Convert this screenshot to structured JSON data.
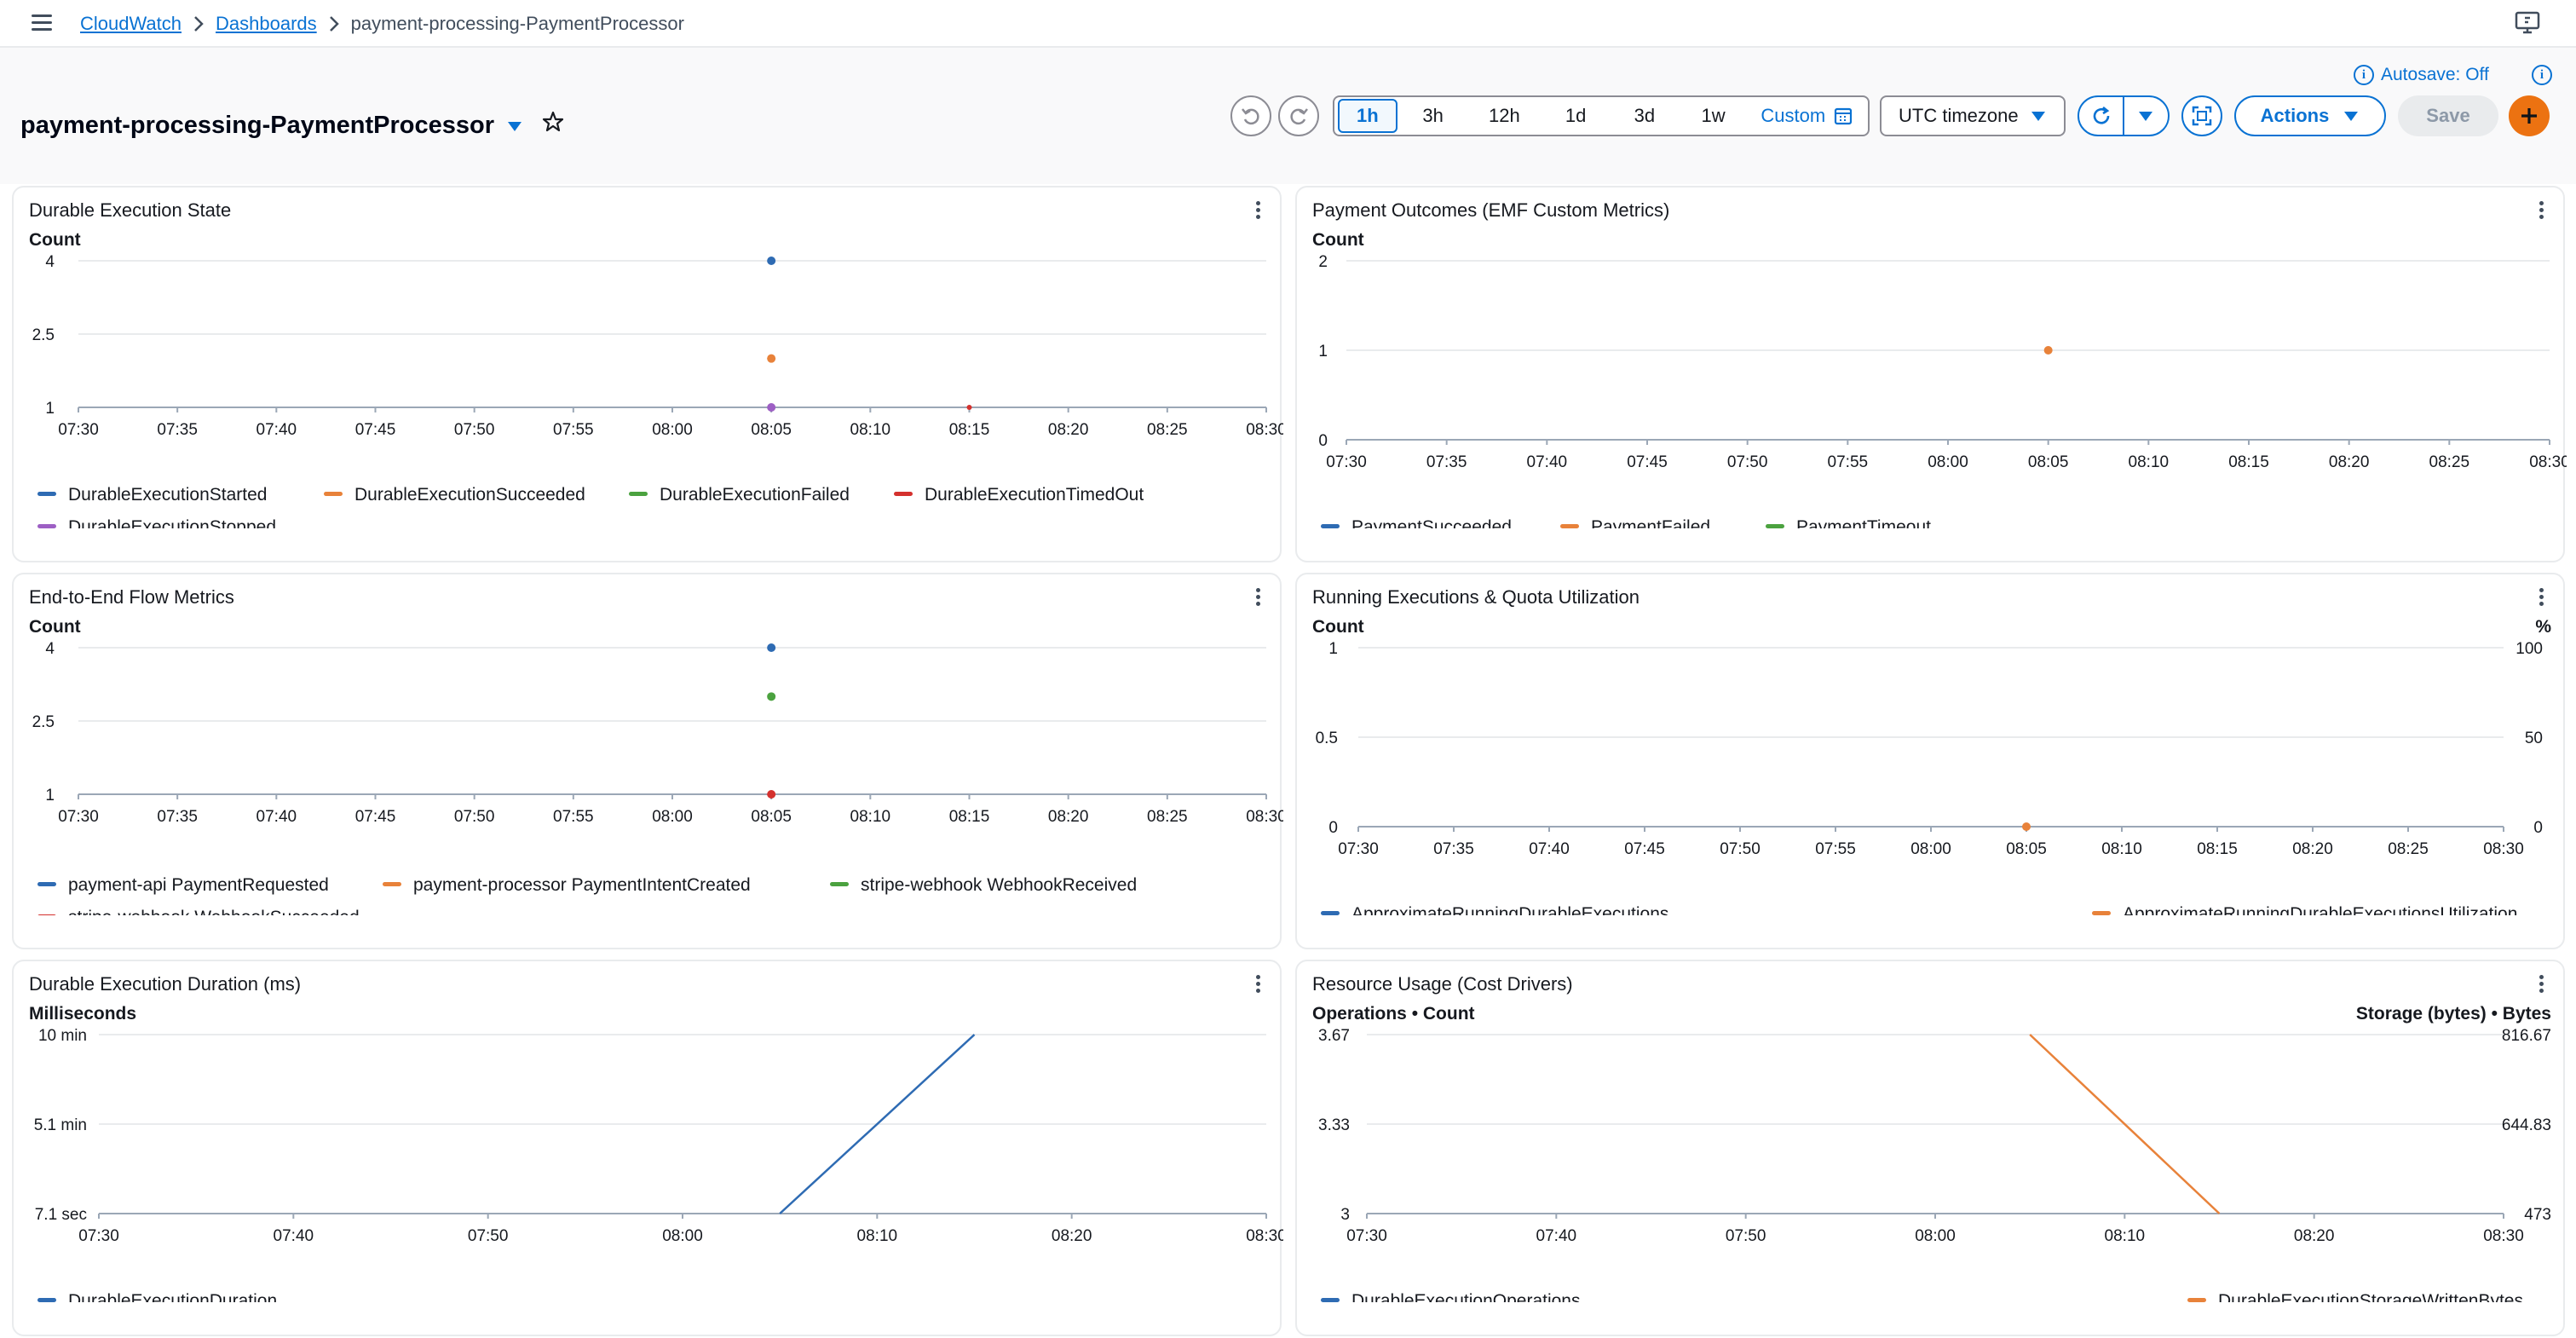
{
  "breadcrumb": {
    "items": [
      "CloudWatch",
      "Dashboards"
    ],
    "current": "payment-processing-PaymentProcessor"
  },
  "header": {
    "title": "payment-processing-PaymentProcessor",
    "autosave": "Autosave: Off",
    "time_ranges": [
      "1h",
      "3h",
      "12h",
      "1d",
      "3d",
      "1w"
    ],
    "active_range": "1h",
    "custom_label": "Custom",
    "timezone": "UTC timezone",
    "actions_label": "Actions",
    "save_label": "Save"
  },
  "colors": {
    "blue": "#2e6bb3",
    "orange": "#e8823a",
    "green": "#4ba23f",
    "red": "#d4312e",
    "purple": "#9d5fc4",
    "link": "#0972d3"
  },
  "widgets": [
    {
      "title": "Durable Execution State",
      "y_title": "Count",
      "y_ticks": [
        "4",
        "2.5",
        "1"
      ],
      "x_ticks": [
        "07:30",
        "07:35",
        "07:40",
        "07:45",
        "07:50",
        "07:55",
        "08:00",
        "08:05",
        "08:10",
        "08:15",
        "08:20",
        "08:25",
        "08:30"
      ],
      "legend": [
        "DurableExecutionStarted",
        "DurableExecutionSucceeded",
        "DurableExecutionFailed",
        "DurableExecutionTimedOut",
        "DurableExecutionStopped"
      ]
    },
    {
      "title": "Payment Outcomes (EMF Custom Metrics)",
      "y_title": "Count",
      "y_ticks": [
        "2",
        "1",
        "0"
      ],
      "x_ticks": [
        "07:30",
        "07:35",
        "07:40",
        "07:45",
        "07:50",
        "07:55",
        "08:00",
        "08:05",
        "08:10",
        "08:15",
        "08:20",
        "08:25",
        "08:30"
      ],
      "legend": [
        "PaymentSucceeded",
        "PaymentFailed",
        "PaymentTimeout"
      ]
    },
    {
      "title": "End-to-End Flow Metrics",
      "y_title": "Count",
      "y_ticks": [
        "4",
        "2.5",
        "1"
      ],
      "x_ticks": [
        "07:30",
        "07:35",
        "07:40",
        "07:45",
        "07:50",
        "07:55",
        "08:00",
        "08:05",
        "08:10",
        "08:15",
        "08:20",
        "08:25",
        "08:30"
      ],
      "legend": [
        "payment-api PaymentRequested",
        "payment-processor PaymentIntentCreated",
        "stripe-webhook WebhookReceived",
        "stripe-webhook WebhookSucceeded"
      ]
    },
    {
      "title": "Running Executions & Quota Utilization",
      "y_title": "Count",
      "y2_title": "%",
      "y_ticks": [
        "1",
        "0.5",
        "0"
      ],
      "y2_ticks": [
        "100",
        "50",
        "0"
      ],
      "x_ticks": [
        "07:30",
        "07:35",
        "07:40",
        "07:45",
        "07:50",
        "07:55",
        "08:00",
        "08:05",
        "08:10",
        "08:15",
        "08:20",
        "08:25",
        "08:30"
      ],
      "legend": [
        "ApproximateRunningDurableExecutions",
        "ApproximateRunningDurableExecutionsUtilization"
      ]
    },
    {
      "title": "Durable Execution Duration (ms)",
      "y_title": "Milliseconds",
      "y_ticks": [
        "10 min",
        "5.1 min",
        "7.1 sec"
      ],
      "x_ticks": [
        "07:30",
        "07:40",
        "07:50",
        "08:00",
        "08:10",
        "08:20",
        "08:30"
      ],
      "legend": [
        "DurableExecutionDuration"
      ]
    },
    {
      "title": "Resource Usage (Cost Drivers)",
      "y_title": "Operations • Count",
      "y2_title": "Storage (bytes) • Bytes",
      "y_ticks": [
        "3.67",
        "3.33",
        "3"
      ],
      "y2_ticks": [
        "816.67",
        "644.83",
        "473"
      ],
      "x_ticks": [
        "07:30",
        "07:40",
        "07:50",
        "08:00",
        "08:10",
        "08:20",
        "08:30"
      ],
      "legend": [
        "DurableExecutionOperations",
        "DurableExecutionStorageWrittenBytes"
      ]
    }
  ],
  "chart_data": [
    {
      "type": "scatter",
      "title": "Durable Execution State",
      "ylabel": "Count",
      "ylim": [
        1,
        4
      ],
      "x_range": [
        "07:30",
        "08:30"
      ],
      "series": [
        {
          "name": "DurableExecutionStarted",
          "color": "blue",
          "points": [
            {
              "x": "08:05",
              "y": 4
            }
          ]
        },
        {
          "name": "DurableExecutionSucceeded",
          "color": "orange",
          "points": [
            {
              "x": "08:05",
              "y": 2
            }
          ]
        },
        {
          "name": "DurableExecutionFailed",
          "color": "green",
          "points": []
        },
        {
          "name": "DurableExecutionTimedOut",
          "color": "red",
          "points": [
            {
              "x": "08:15",
              "y": 1
            }
          ]
        },
        {
          "name": "DurableExecutionStopped",
          "color": "purple",
          "points": [
            {
              "x": "08:05",
              "y": 1
            }
          ]
        }
      ]
    },
    {
      "type": "scatter",
      "title": "Payment Outcomes (EMF Custom Metrics)",
      "ylabel": "Count",
      "ylim": [
        0,
        2
      ],
      "x_range": [
        "07:30",
        "08:30"
      ],
      "series": [
        {
          "name": "PaymentSucceeded",
          "color": "blue",
          "points": []
        },
        {
          "name": "PaymentFailed",
          "color": "orange",
          "points": [
            {
              "x": "08:05",
              "y": 1
            }
          ]
        },
        {
          "name": "PaymentTimeout",
          "color": "green",
          "points": []
        }
      ]
    },
    {
      "type": "scatter",
      "title": "End-to-End Flow Metrics",
      "ylabel": "Count",
      "ylim": [
        1,
        4
      ],
      "x_range": [
        "07:30",
        "08:30"
      ],
      "series": [
        {
          "name": "payment-api PaymentRequested",
          "color": "blue",
          "points": [
            {
              "x": "08:05",
              "y": 4
            }
          ]
        },
        {
          "name": "payment-processor PaymentIntentCreated",
          "color": "orange",
          "points": []
        },
        {
          "name": "stripe-webhook WebhookReceived",
          "color": "green",
          "points": [
            {
              "x": "08:05",
              "y": 3
            }
          ]
        },
        {
          "name": "stripe-webhook WebhookSucceeded",
          "color": "red",
          "points": [
            {
              "x": "08:05",
              "y": 1
            }
          ]
        }
      ]
    },
    {
      "type": "scatter",
      "title": "Running Executions & Quota Utilization",
      "ylabel": "Count",
      "y2label": "%",
      "ylim": [
        0,
        1
      ],
      "y2lim": [
        0,
        100
      ],
      "x_range": [
        "07:30",
        "08:30"
      ],
      "series": [
        {
          "name": "ApproximateRunningDurableExecutions",
          "color": "blue",
          "points": []
        },
        {
          "name": "ApproximateRunningDurableExecutionsUtilization",
          "color": "orange",
          "points": [
            {
              "x": "08:05",
              "y": 0
            }
          ]
        }
      ]
    },
    {
      "type": "line",
      "title": "Durable Execution Duration (ms)",
      "ylabel": "Milliseconds",
      "y_tick_values_ms": [
        600000,
        306000,
        7100
      ],
      "x_range": [
        "07:30",
        "08:30"
      ],
      "series": [
        {
          "name": "DurableExecutionDuration",
          "color": "blue",
          "points": [
            {
              "x": "08:05",
              "y": 7100
            },
            {
              "x": "08:15",
              "y": 600000
            }
          ]
        }
      ]
    },
    {
      "type": "line",
      "title": "Resource Usage (Cost Drivers)",
      "ylabel": "Operations • Count",
      "y2label": "Storage (bytes) • Bytes",
      "ylim": [
        3,
        3.67
      ],
      "y2lim": [
        473,
        816.67
      ],
      "x_range": [
        "07:30",
        "08:30"
      ],
      "series": [
        {
          "name": "DurableExecutionOperations",
          "color": "blue",
          "points": []
        },
        {
          "name": "DurableExecutionStorageWrittenBytes",
          "color": "orange",
          "axis": "right",
          "points": [
            {
              "x": "08:05",
              "y": 816.67
            },
            {
              "x": "08:15",
              "y": 473
            }
          ]
        }
      ]
    }
  ]
}
